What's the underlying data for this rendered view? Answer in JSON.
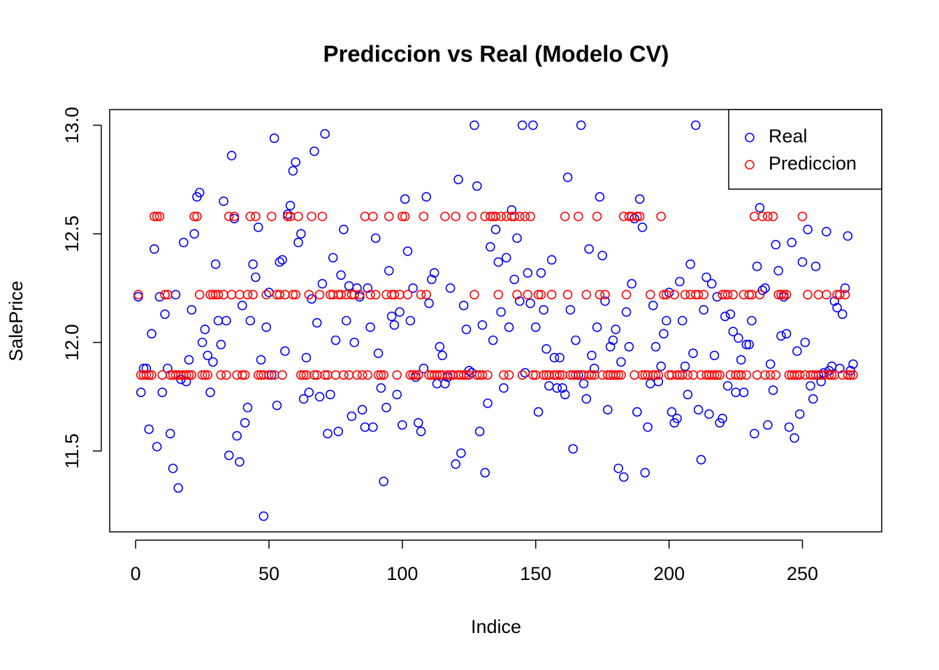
{
  "chart_data": {
    "type": "scatter",
    "title": "Prediccion vs Real (Modelo CV)",
    "xlabel": "Indice",
    "ylabel": "SalePrice",
    "x": [
      1,
      2,
      3,
      4,
      5,
      6,
      7,
      8,
      9,
      10,
      11,
      12,
      13,
      14,
      15,
      16,
      17,
      18,
      19,
      20,
      21,
      22,
      23,
      24,
      25,
      26,
      27,
      28,
      29,
      30,
      31,
      32,
      33,
      34,
      35,
      36,
      37,
      38,
      39,
      40,
      41,
      42,
      43,
      44,
      45,
      46,
      47,
      48,
      49,
      50,
      51,
      52,
      53,
      54,
      55,
      56,
      57,
      58,
      59,
      60,
      61,
      62,
      63,
      64,
      65,
      66,
      67,
      68,
      69,
      70,
      71,
      72,
      73,
      74,
      75,
      76,
      77,
      78,
      79,
      80,
      81,
      82,
      83,
      84,
      85,
      86,
      87,
      88,
      89,
      90,
      91,
      92,
      93,
      94,
      95,
      96,
      97,
      98,
      99,
      100,
      101,
      102,
      103,
      104,
      105,
      106,
      107,
      108,
      109,
      110,
      111,
      112,
      113,
      114,
      115,
      116,
      117,
      118,
      119,
      120,
      121,
      122,
      123,
      124,
      125,
      126,
      127,
      128,
      129,
      130,
      131,
      132,
      133,
      134,
      135,
      136,
      137,
      138,
      139,
      140,
      141,
      142,
      143,
      144,
      145,
      146,
      147,
      148,
      149,
      150,
      151,
      152,
      153,
      154,
      155,
      156,
      157,
      158,
      159,
      160,
      161,
      162,
      163,
      164,
      165,
      166,
      167,
      168,
      169,
      170,
      171,
      172,
      173,
      174,
      175,
      176,
      177,
      178,
      179,
      180,
      181,
      182,
      183,
      184,
      185,
      186,
      187,
      188,
      189,
      190,
      191,
      192,
      193,
      194,
      195,
      196,
      197,
      198,
      199,
      200,
      201,
      202,
      203,
      204,
      205,
      206,
      207,
      208,
      209,
      210,
      211,
      212,
      213,
      214,
      215,
      216,
      217,
      218,
      219,
      220,
      221,
      222,
      223,
      224,
      225,
      226,
      227,
      228,
      229,
      230,
      231,
      232,
      233,
      234,
      235,
      236,
      237,
      238,
      239,
      240,
      241,
      242,
      243,
      244,
      245,
      246,
      247,
      248,
      249,
      250,
      251,
      252,
      253,
      254,
      255,
      256,
      257,
      258,
      259,
      260,
      261,
      262,
      263,
      264,
      265,
      266,
      267,
      268,
      269
    ],
    "series": [
      {
        "name": "Real",
        "color": "#0000ff",
        "values": [
          12.21,
          11.77,
          11.88,
          11.88,
          11.6,
          12.04,
          12.43,
          11.52,
          12.21,
          11.77,
          12.13,
          11.88,
          11.58,
          11.42,
          12.22,
          11.33,
          11.83,
          12.46,
          11.82,
          11.92,
          12.15,
          12.5,
          12.67,
          12.69,
          12.0,
          12.06,
          11.94,
          11.77,
          11.91,
          12.36,
          12.1,
          11.99,
          12.65,
          12.1,
          11.48,
          12.86,
          12.57,
          11.57,
          11.45,
          12.17,
          11.63,
          11.7,
          12.1,
          12.36,
          12.3,
          12.53,
          11.92,
          11.2,
          12.07,
          12.23,
          11.85,
          12.94,
          11.71,
          12.37,
          12.38,
          11.96,
          12.59,
          12.63,
          12.79,
          12.83,
          12.46,
          12.5,
          11.74,
          11.93,
          11.77,
          12.2,
          12.88,
          12.09,
          11.75,
          12.27,
          12.96,
          11.58,
          11.76,
          12.39,
          12.01,
          11.59,
          12.31,
          12.52,
          12.1,
          12.26,
          11.66,
          12.0,
          12.25,
          12.21,
          11.69,
          11.61,
          12.25,
          12.07,
          11.61,
          12.48,
          11.95,
          11.79,
          11.36,
          11.7,
          12.33,
          12.12,
          12.08,
          11.76,
          12.14,
          11.62,
          12.66,
          12.42,
          12.1,
          12.25,
          11.84,
          11.63,
          11.59,
          11.88,
          12.67,
          12.18,
          12.29,
          12.32,
          11.81,
          11.98,
          11.94,
          11.81,
          11.84,
          12.25,
          11.85,
          11.44,
          12.75,
          11.49,
          12.17,
          12.06,
          11.87,
          11.86,
          13.0,
          12.72,
          11.59,
          12.08,
          11.4,
          11.72,
          12.44,
          12.01,
          12.52,
          12.37,
          12.14,
          11.79,
          12.39,
          12.07,
          12.61,
          12.29,
          12.48,
          12.19,
          13.0,
          11.86,
          12.32,
          12.18,
          13.0,
          12.07,
          11.68,
          12.32,
          12.15,
          11.97,
          11.8,
          12.38,
          11.93,
          11.79,
          11.93,
          11.79,
          11.76,
          12.76,
          12.15,
          11.51,
          12.01,
          11.85,
          13.0,
          11.81,
          11.74,
          12.43,
          11.94,
          11.88,
          12.07,
          12.67,
          12.4,
          12.19,
          11.69,
          11.98,
          12.01,
          12.06,
          11.42,
          11.91,
          11.38,
          12.14,
          11.98,
          12.27,
          12.57,
          11.68,
          12.66,
          12.53,
          11.4,
          11.61,
          11.81,
          12.17,
          11.98,
          11.82,
          11.89,
          12.04,
          12.1,
          12.23,
          11.68,
          11.63,
          11.65,
          12.28,
          12.1,
          11.89,
          11.76,
          12.36,
          11.95,
          13.0,
          11.69,
          11.46,
          12.15,
          12.3,
          11.67,
          12.27,
          11.94,
          12.21,
          11.63,
          11.65,
          12.12,
          11.8,
          12.13,
          12.05,
          11.77,
          12.02,
          11.92,
          11.77,
          11.99,
          11.99,
          12.1,
          11.58,
          12.35,
          12.62,
          12.24,
          12.25,
          11.62,
          11.9,
          11.78,
          12.45,
          12.33,
          12.03,
          12.21,
          12.04,
          11.61,
          12.46,
          11.56,
          11.96,
          11.67,
          12.37,
          12.0,
          12.52,
          11.8,
          11.74,
          12.35,
          11.85,
          11.82,
          11.86,
          12.51,
          11.87,
          11.89,
          12.19,
          12.16,
          11.88,
          12.13,
          12.25,
          12.49,
          11.87,
          11.9
        ]
      },
      {
        "name": "Prediccion",
        "color": "#ff0000",
        "values": [
          12.22,
          11.85,
          11.85,
          11.85,
          11.85,
          11.85,
          12.58,
          12.58,
          12.58,
          11.85,
          12.22,
          12.22,
          11.85,
          11.85,
          11.85,
          11.85,
          11.85,
          11.85,
          11.85,
          11.85,
          11.85,
          12.58,
          12.58,
          12.22,
          11.85,
          11.85,
          11.85,
          12.22,
          12.22,
          12.22,
          12.22,
          11.85,
          12.22,
          11.85,
          12.58,
          12.22,
          12.58,
          11.85,
          12.22,
          11.85,
          11.85,
          12.22,
          12.58,
          12.22,
          12.58,
          11.85,
          11.85,
          11.85,
          12.22,
          11.85,
          12.58,
          11.85,
          12.22,
          12.22,
          11.85,
          12.22,
          12.58,
          12.58,
          12.22,
          12.22,
          12.58,
          11.85,
          11.85,
          11.85,
          12.22,
          12.58,
          11.85,
          11.85,
          12.22,
          12.58,
          11.85,
          11.85,
          12.22,
          12.22,
          11.85,
          12.22,
          12.22,
          11.85,
          12.22,
          11.85,
          12.22,
          12.22,
          11.85,
          12.22,
          11.85,
          12.58,
          11.85,
          12.22,
          12.58,
          12.22,
          11.85,
          11.85,
          11.85,
          12.22,
          12.58,
          12.22,
          12.22,
          11.85,
          12.22,
          12.58,
          12.58,
          12.22,
          11.85,
          11.85,
          11.85,
          11.85,
          12.22,
          12.58,
          12.22,
          11.85,
          11.85,
          11.85,
          11.85,
          11.85,
          11.85,
          12.58,
          11.85,
          11.85,
          11.85,
          12.58,
          11.85,
          11.85,
          11.85,
          11.85,
          11.85,
          12.58,
          12.22,
          11.85,
          11.85,
          11.85,
          12.58,
          11.85,
          12.58,
          12.58,
          12.58,
          12.22,
          12.58,
          11.85,
          12.58,
          11.85,
          12.58,
          12.58,
          12.22,
          12.58,
          11.85,
          12.58,
          12.22,
          12.58,
          11.85,
          11.85,
          12.22,
          12.22,
          11.85,
          11.85,
          11.85,
          12.22,
          11.85,
          11.85,
          11.85,
          11.85,
          12.58,
          12.22,
          11.85,
          11.85,
          11.85,
          12.58,
          11.85,
          11.85,
          12.22,
          11.85,
          11.85,
          11.85,
          12.58,
          12.22,
          11.85,
          12.22,
          11.85,
          11.85,
          11.85,
          11.85,
          11.85,
          11.85,
          12.58,
          12.22,
          12.58,
          12.58,
          11.85,
          12.58,
          12.58,
          11.85,
          11.85,
          11.85,
          12.22,
          11.85,
          11.85,
          11.85,
          12.58,
          12.22,
          12.22,
          11.85,
          11.85,
          12.22,
          11.85,
          11.85,
          11.85,
          12.22,
          11.85,
          12.22,
          11.85,
          12.22,
          12.22,
          11.85,
          12.22,
          11.85,
          11.85,
          11.85,
          11.85,
          11.85,
          11.85,
          12.22,
          12.22,
          12.22,
          11.85,
          12.22,
          11.85,
          11.85,
          11.85,
          12.22,
          11.85,
          12.22,
          12.22,
          12.58,
          11.85,
          12.22,
          12.58,
          11.85,
          12.58,
          11.85,
          12.58,
          11.85,
          12.22,
          12.22,
          12.22,
          12.22,
          11.85,
          11.85,
          11.85,
          11.85,
          11.85,
          12.58,
          11.85,
          12.22,
          11.85,
          11.85,
          11.85,
          12.22,
          11.85,
          11.85,
          12.22,
          11.85,
          11.85,
          11.85,
          12.22,
          12.22,
          11.85,
          12.22,
          11.85,
          11.85,
          11.85
        ]
      }
    ],
    "xlim": [
      -9.72,
      279.72
    ],
    "ylim": [
      11.128,
      13.072
    ],
    "xticks": [
      0,
      50,
      100,
      150,
      200,
      250
    ],
    "yticks": [
      11.5,
      {
        "value": 12,
        "label": "12.0"
      },
      12.5,
      {
        "value": 13,
        "label": "13.0"
      }
    ],
    "legend": "topright"
  }
}
